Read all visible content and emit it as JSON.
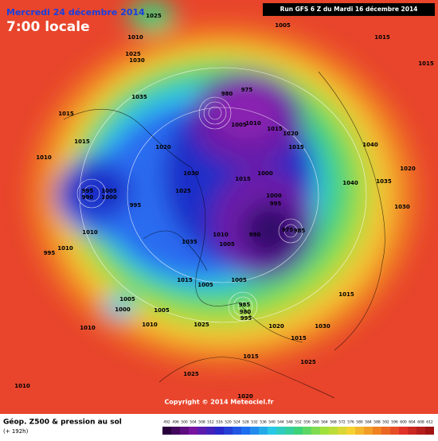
{
  "header": {
    "date": "Mercredi 24 décembre 2014",
    "time": "7:00 locale",
    "run": "Run GFS 6 Z du Mardi 16 décembre 2014"
  },
  "pressure_labels": [
    1025,
    1010,
    1025,
    1030,
    1035,
    1015,
    1015,
    1010,
    995,
    990,
    1005,
    1000,
    995,
    1020,
    1030,
    1025,
    980,
    975,
    1005,
    1010,
    1015,
    1020,
    1015,
    1015,
    1000,
    1000,
    995,
    990,
    975,
    985,
    1010,
    1005,
    1035,
    1015,
    1005,
    1005,
    985,
    980,
    995,
    1020,
    1030,
    1015,
    1010,
    1010,
    995,
    1005,
    1000,
    1005,
    1010,
    1010,
    1025,
    1025,
    1015,
    1025,
    1010,
    1020,
    1040,
    1040,
    1035,
    1030,
    1015,
    1015,
    1015,
    1005,
    1020
  ],
  "copyright": "Copyright © 2014 Meteociel.fr",
  "footer": {
    "title": "Géop. Z500 & pression au sol",
    "lead": "(+ 192h)"
  },
  "legend": {
    "values": [
      492,
      496,
      500,
      504,
      508,
      512,
      516,
      520,
      524,
      528,
      532,
      536,
      540,
      544,
      548,
      552,
      556,
      560,
      564,
      568,
      572,
      576,
      580,
      584,
      588,
      592,
      596,
      600,
      604,
      608,
      612
    ]
  }
}
